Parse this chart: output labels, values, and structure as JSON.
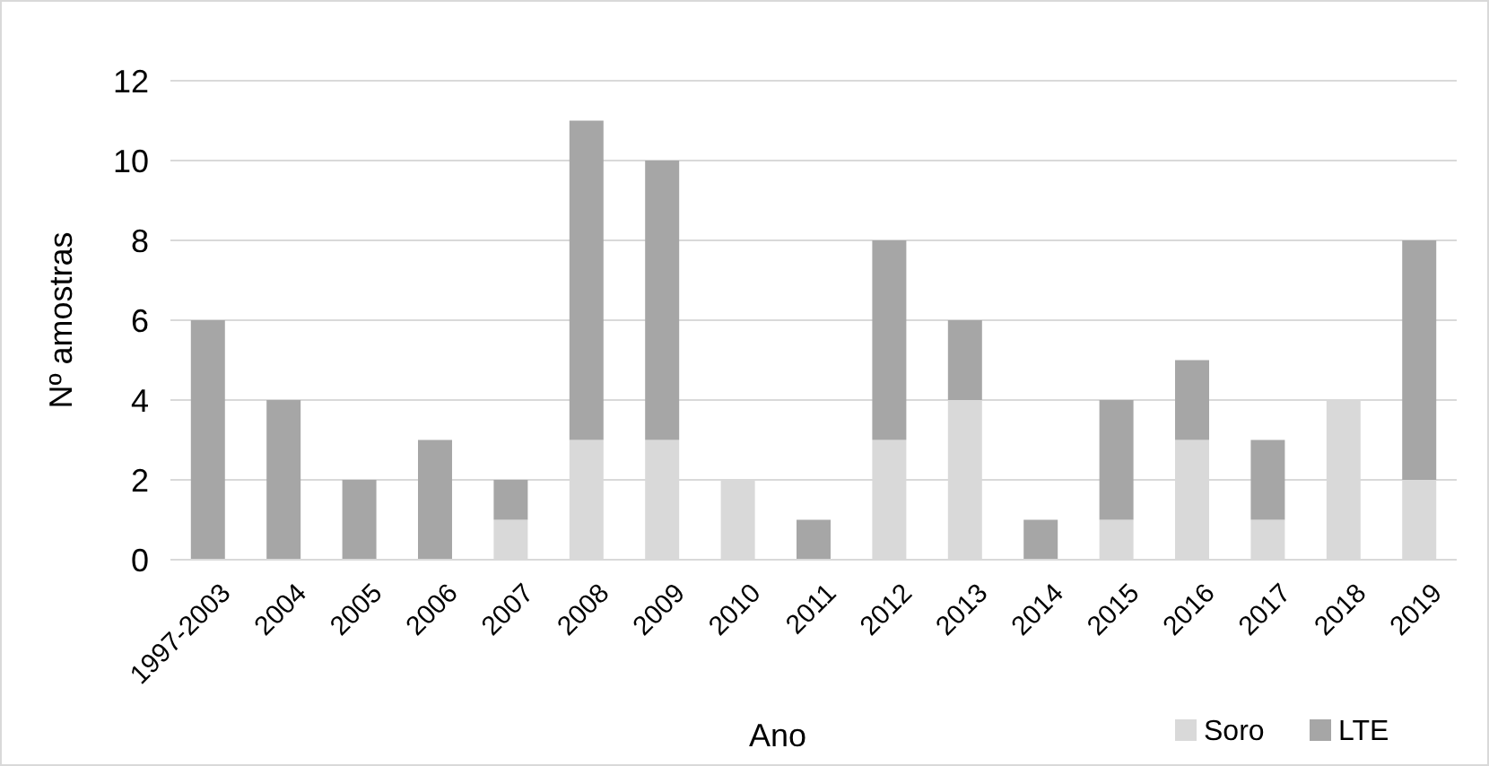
{
  "chart_data": {
    "type": "bar",
    "stacked": true,
    "xlabel": "Ano",
    "ylabel": "Nº amostras",
    "categories": [
      "1997-2003",
      "2004",
      "2005",
      "2006",
      "2007",
      "2008",
      "2009",
      "2010",
      "2011",
      "2012",
      "2013",
      "2014",
      "2015",
      "2016",
      "2017",
      "2018",
      "2019"
    ],
    "series": [
      {
        "name": "Soro",
        "color": "#d9d9d9",
        "values": [
          0,
          0,
          0,
          0,
          1,
          3,
          3,
          2,
          0,
          3,
          4,
          0,
          1,
          3,
          1,
          4,
          2
        ]
      },
      {
        "name": "LTE",
        "color": "#a6a6a6",
        "values": [
          6,
          4,
          2,
          3,
          1,
          8,
          7,
          0,
          1,
          5,
          2,
          1,
          3,
          2,
          2,
          0,
          6
        ]
      }
    ],
    "ylim": [
      0,
      12
    ],
    "yticks": [
      0,
      2,
      4,
      6,
      8,
      10,
      12
    ],
    "grid": "y",
    "legend": "bottom right"
  }
}
